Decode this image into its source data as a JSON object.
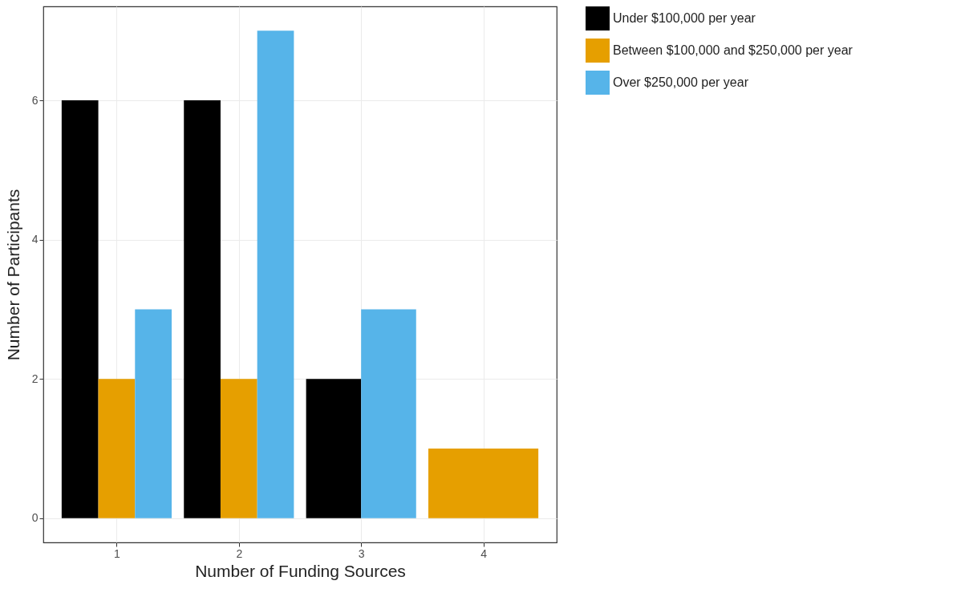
{
  "chart_data": {
    "type": "bar",
    "xlabel": "Number of Funding Sources",
    "ylabel": "Number of Participants",
    "categories": [
      "1",
      "2",
      "3",
      "4"
    ],
    "series": [
      {
        "name": "Under $100,000 per year",
        "color": "#000000",
        "values": [
          6,
          6,
          2,
          null
        ]
      },
      {
        "name": "Between $100,000 and $250,000 per year",
        "color": "#e69f00",
        "values": [
          2,
          2,
          null,
          1
        ]
      },
      {
        "name": "Over $250,000 per year",
        "color": "#56b4e9",
        "values": [
          3,
          7,
          3,
          null
        ]
      }
    ],
    "ylim": [
      -0.35,
      7.35
    ],
    "yticks": [
      0,
      2,
      4,
      6
    ],
    "grid": true,
    "legend": "right"
  }
}
